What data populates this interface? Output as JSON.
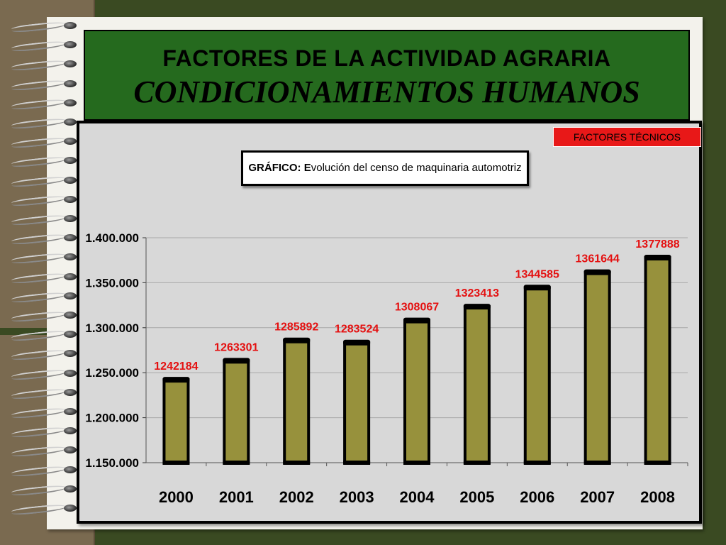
{
  "header": {
    "line1": "FACTORES DE LA ACTIVIDAD AGRARIA",
    "line2": "CONDICIONAMIENTOS HUMANOS"
  },
  "badge": {
    "label": "FACTORES TÉCNICOS",
    "color": "#e81818"
  },
  "colors": {
    "background": "#3a4a22",
    "header": "#256a1e",
    "bar_fill": "#97913c",
    "data_label": "#e41010"
  },
  "chart_data": {
    "type": "bar",
    "title_prefix": "GRÁFICO:",
    "title_initial": "E",
    "title_rest": "volución del censo de maquinaria automotriz",
    "categories": [
      "2000",
      "2001",
      "2002",
      "2003",
      "2004",
      "2005",
      "2006",
      "2007",
      "2008"
    ],
    "values": [
      1242184,
      1263301,
      1285892,
      1283524,
      1308067,
      1323413,
      1344585,
      1361644,
      1377888
    ],
    "data_labels": [
      "1242184",
      "1263301",
      "1285892",
      "1283524",
      "1308067",
      "1323413",
      "1344585",
      "1361644",
      "1377888"
    ],
    "ylim": [
      1150000,
      1400000
    ],
    "yticks": [
      1150000,
      1200000,
      1250000,
      1300000,
      1350000,
      1400000
    ],
    "ytick_labels": [
      "1.150.000",
      "1.200.000",
      "1.250.000",
      "1.300.000",
      "1.350.000",
      "1.400.000"
    ],
    "grid": true,
    "legend": false
  }
}
